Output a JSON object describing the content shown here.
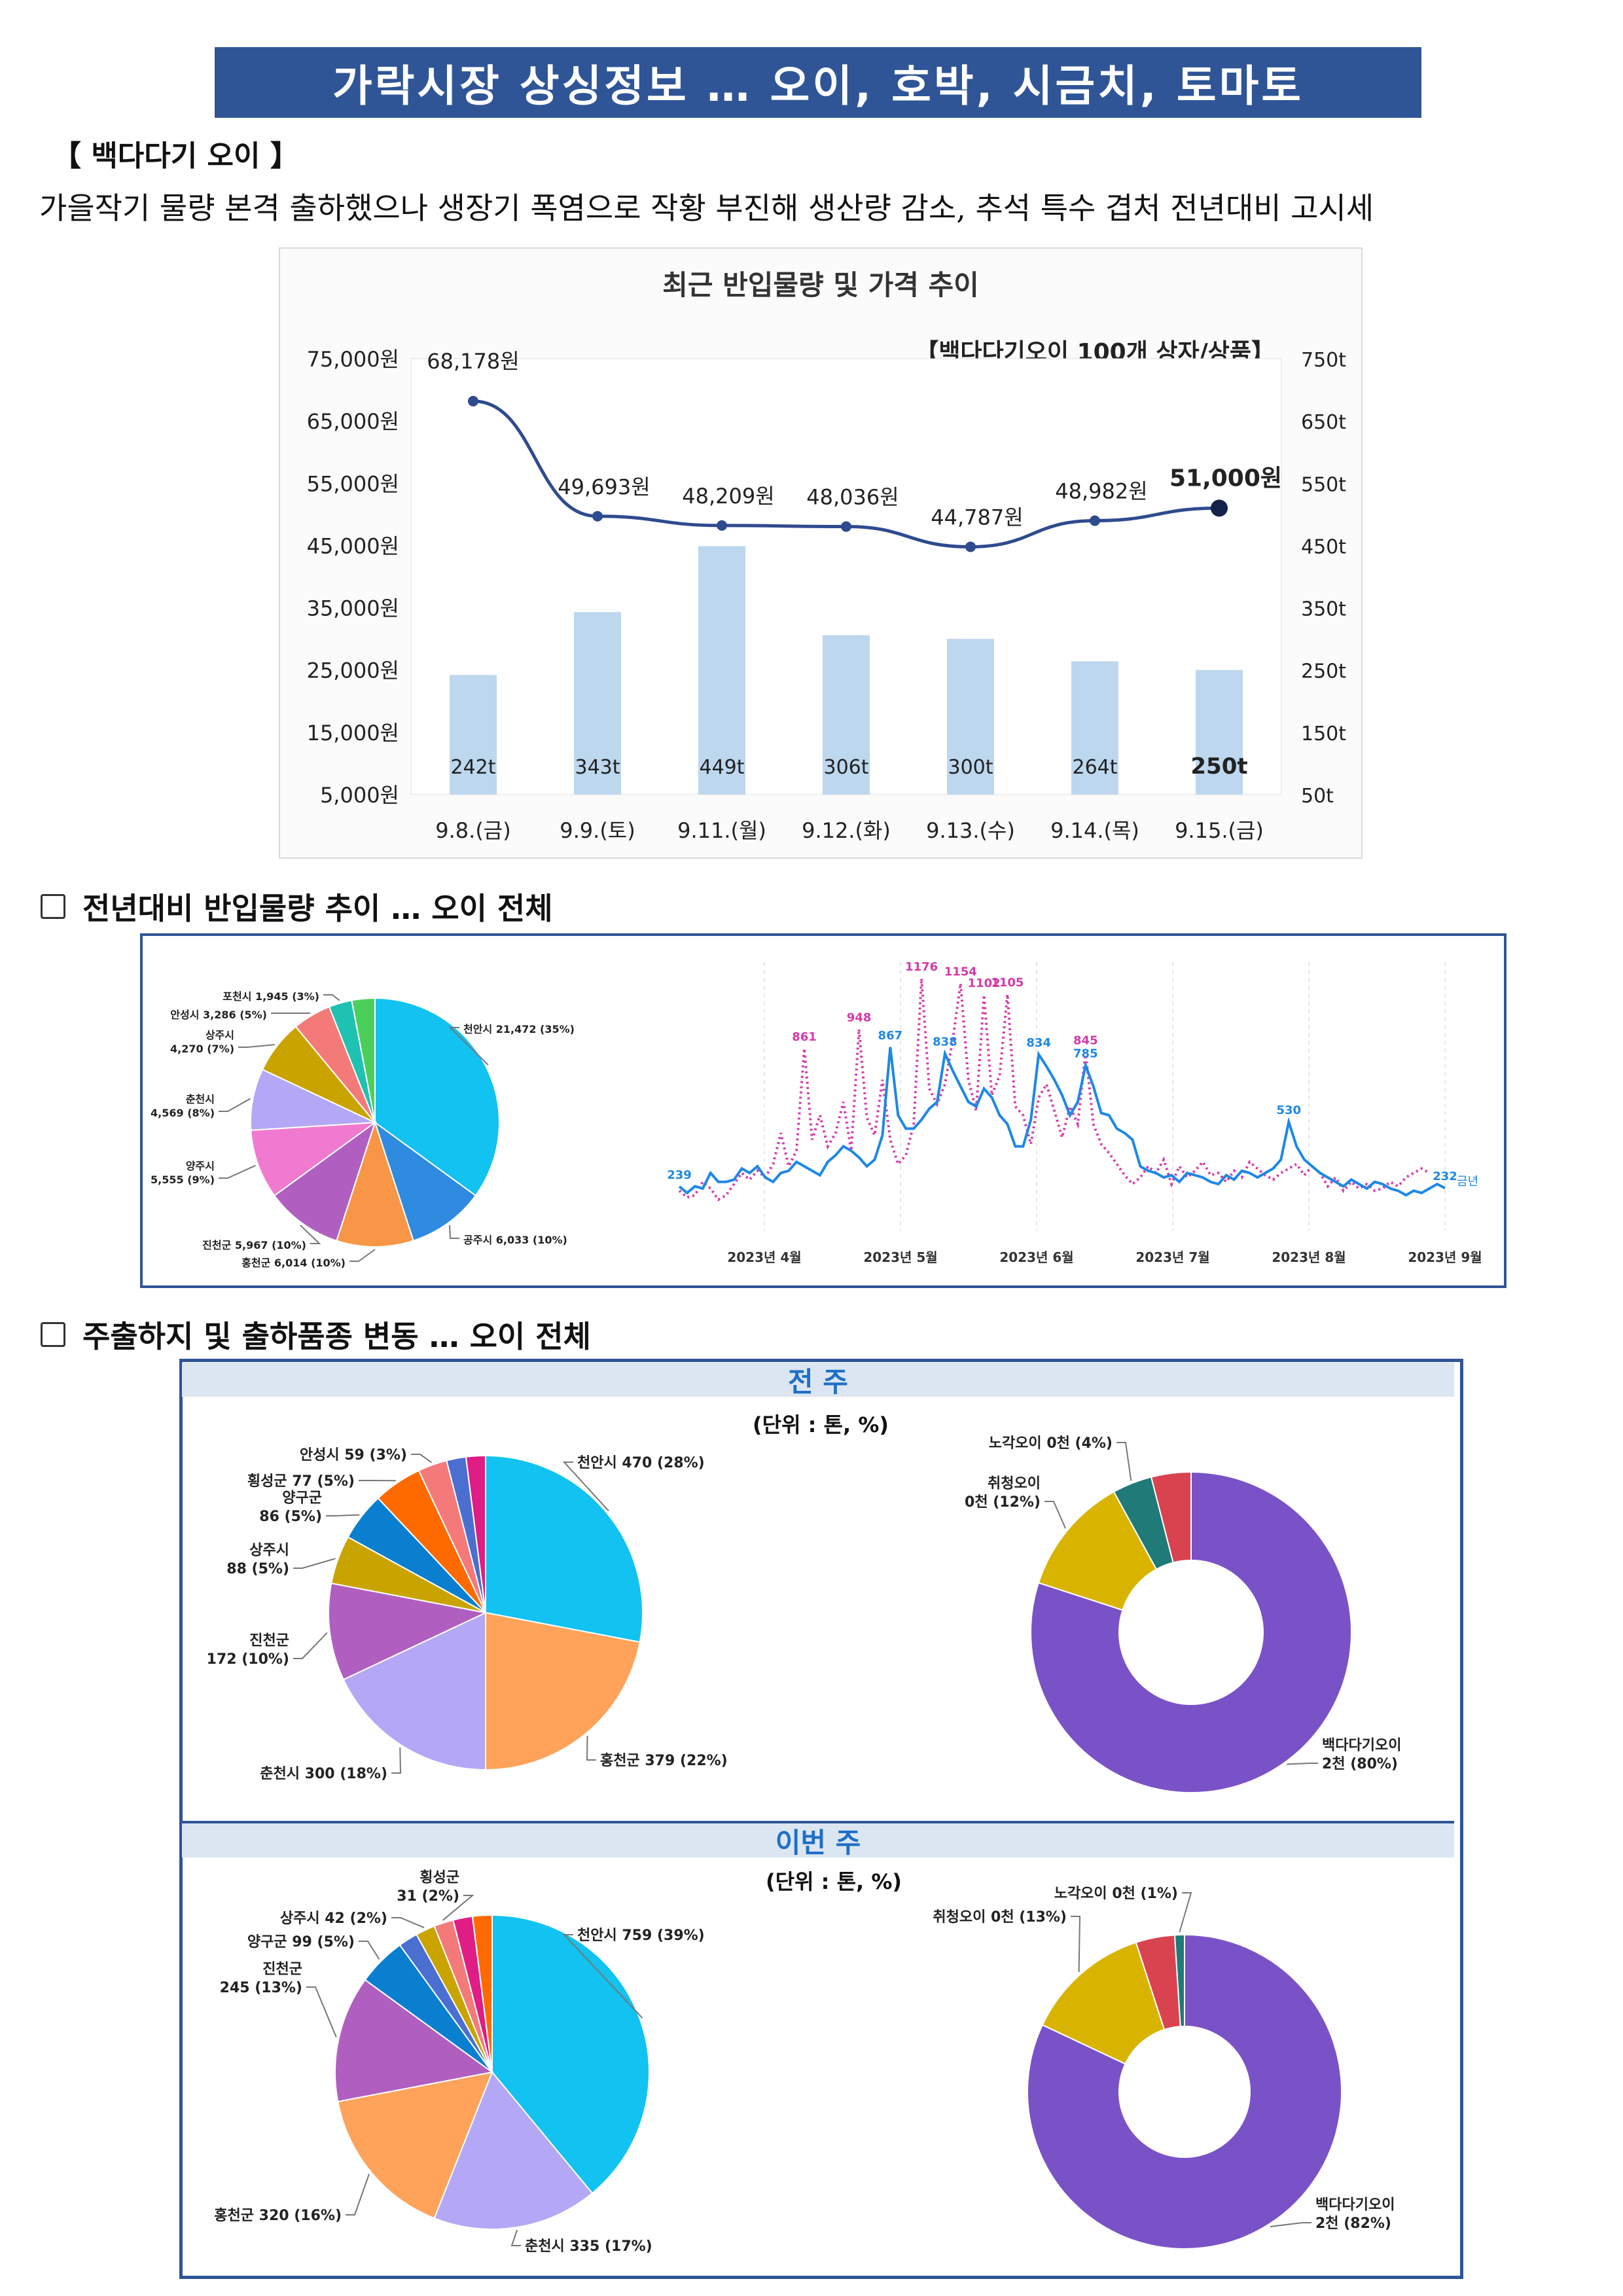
{
  "title": "가락시장 상싱정보 … 오이, 호박, 시금치, 토마토",
  "subhead": "【 백다다기 오이 】",
  "description": "가을작기 물량 본격 출하했으나 생장기 폭염으로 작황 부진해 생산량 감소, 추석 특수 겹처 전년대비 고시세",
  "chart_data": [
    {
      "type": "bar",
      "title": "최근 반입물량 및 가격 추이",
      "annotation": "【백다다기오이 100개 상자/상품】",
      "categories": [
        "9.8.(금)",
        "9.9.(토)",
        "9.11.(월)",
        "9.12.(화)",
        "9.13.(수)",
        "9.14.(목)",
        "9.15.(금)"
      ],
      "series": [
        {
          "values": [
            242,
            343,
            449,
            306,
            300,
            264,
            250
          ],
          "labels": [
            "242t",
            "343t",
            "449t",
            "306t",
            "300t",
            "264t",
            "250t"
          ]
        },
        {
          "values": [
            68178,
            49693,
            48209,
            48036,
            44787,
            48982,
            51000
          ],
          "labels": [
            "68,178원",
            "49,693원",
            "48,209원",
            "48,036원",
            "44,787원",
            "48,982원",
            "51,000원"
          ]
        }
      ],
      "y_left_ticks": [
        "75,000원",
        "65,000원",
        "55,000원",
        "45,000원",
        "35,000원",
        "25,000원",
        "15,000원",
        "5,000원"
      ],
      "y_right_ticks": [
        "750t",
        "650t",
        "550t",
        "450t",
        "350t",
        "250t",
        "150t",
        "50t"
      ],
      "ylim_left": [
        5000,
        75000
      ],
      "ylim_right": [
        50,
        750
      ],
      "colors": {
        "bar": "#bdd7ee",
        "line": "#2f4b8f"
      }
    },
    {
      "type": "pie",
      "section": "전년대비 반입물량 추이 … 오이 전체",
      "slices": [
        {
          "label": "천안시 21,472 (35%)",
          "value": 35,
          "color": "#12c2f0"
        },
        {
          "label": "공주시 6,033 (10%)",
          "value": 10,
          "color": "#2e8be0"
        },
        {
          "label": "홍천군 6,014 (10%)",
          "value": 10,
          "color": "#f79646"
        },
        {
          "label": "진천군 5,967 (10%)",
          "value": 10,
          "color": "#b05fc0"
        },
        {
          "label": "양주시 5,555 (9%)",
          "value": 9,
          "color": "#f07ad0"
        },
        {
          "label": "춘천시 4,569 (8%)",
          "value": 8,
          "color": "#b4a7f5"
        },
        {
          "label": "상주시 4,270 (7%)",
          "value": 7,
          "color": "#c9a400"
        },
        {
          "label": "안성시 3,286 (5%)",
          "value": 5,
          "color": "#f47a7a"
        },
        {
          "label": "포천시 1,945 (3%)",
          "value": 3,
          "color": "#1fc2b0"
        },
        {
          "label": "",
          "value": 3,
          "color": "#4ccf5a"
        }
      ]
    },
    {
      "type": "line",
      "x_labels": [
        "2023년 4월",
        "2023년 5월",
        "2023년 6월",
        "2023년 7월",
        "2023년 8월",
        "2023년 9월"
      ],
      "series": [
        {
          "name": "금년",
          "color": "#1e88e5",
          "peak_labels": [
            "239",
            "867",
            "838",
            "834",
            "785",
            "530",
            "232"
          ],
          "values": [
            239,
            210,
            240,
            230,
            300,
            260,
            260,
            270,
            320,
            300,
            330,
            280,
            260,
            300,
            310,
            350,
            330,
            310,
            290,
            350,
            380,
            420,
            400,
            370,
            330,
            360,
            470,
            867,
            560,
            500,
            500,
            540,
            590,
            620,
            838,
            760,
            690,
            620,
            600,
            680,
            640,
            560,
            520,
            420,
            420,
            540,
            834,
            780,
            720,
            650,
            560,
            620,
            785,
            690,
            570,
            560,
            500,
            480,
            450,
            330,
            310,
            300,
            280,
            290,
            260,
            300,
            290,
            280,
            260,
            250,
            290,
            270,
            310,
            300,
            280,
            300,
            320,
            360,
            530,
            420,
            360,
            330,
            300,
            280,
            260,
            240,
            270,
            250,
            230,
            260,
            250,
            230,
            220,
            200,
            220,
            210,
            230,
            250,
            232
          ]
        },
        {
          "name": "",
          "color": "#d63aa8",
          "peak_labels": [
            "861",
            "948",
            "1176",
            "1154",
            "1102",
            "1105",
            "845"
          ],
          "values": [
            220,
            190,
            200,
            260,
            230,
            180,
            200,
            250,
            300,
            270,
            310,
            280,
            340,
            480,
            330,
            400,
            861,
            450,
            560,
            420,
            480,
            620,
            400,
            948,
            550,
            470,
            720,
            450,
            340,
            380,
            520,
            1176,
            680,
            610,
            700,
            900,
            1154,
            720,
            580,
            1102,
            650,
            740,
            1105,
            600,
            560,
            430,
            640,
            700,
            580,
            460,
            600,
            520,
            845,
            520,
            430,
            390,
            340,
            290,
            250,
            280,
            330,
            300,
            360,
            250,
            330,
            280,
            310,
            350,
            290,
            300,
            260,
            310,
            280,
            350,
            320,
            290,
            270,
            300,
            320,
            340,
            290,
            330,
            300,
            240,
            280,
            220,
            260,
            230,
            250,
            220,
            230,
            260,
            240,
            280,
            300,
            320,
            300
          ]
        }
      ]
    },
    {
      "type": "pie",
      "section": "주출하지 및 출하품종 변동 … 오이 전체",
      "week": "전 주",
      "unit": "(단위 : 톤, %)",
      "slices": [
        {
          "label": "천안시 470 (28%)",
          "value": 28,
          "color": "#12c2f0"
        },
        {
          "label": "홍천군 379 (22%)",
          "value": 22,
          "color": "#ffa35a"
        },
        {
          "label": "춘천시 300 (18%)",
          "value": 18,
          "color": "#b4a7f5"
        },
        {
          "label": "진천군 172 (10%)",
          "value": 10,
          "color": "#b05fc0"
        },
        {
          "label": "상주시 88 (5%)",
          "value": 5,
          "color": "#c9a400"
        },
        {
          "label": "양구군 86 (5%)",
          "value": 5,
          "color": "#0a7fd0"
        },
        {
          "label": "횡성군 77 (5%)",
          "value": 5,
          "color": "#ff6a00"
        },
        {
          "label": "안성시 59 (3%)",
          "value": 3,
          "color": "#f47a7a"
        },
        {
          "label": "",
          "value": 2,
          "color": "#4a6fd1"
        },
        {
          "label": "",
          "value": 2,
          "color": "#e01c85"
        }
      ]
    },
    {
      "type": "pie",
      "variant": "donut",
      "week": "전 주",
      "slices": [
        {
          "label": "백다다기오이 2천 (80%)",
          "value": 80,
          "color": "#7a52c7"
        },
        {
          "label": "취청오이 0천 (12%)",
          "value": 12,
          "color": "#d8b400"
        },
        {
          "label": "노각오이 0천 (4%)",
          "value": 4,
          "color": "#1f7a78"
        },
        {
          "label": "",
          "value": 4,
          "color": "#d9434f"
        }
      ]
    },
    {
      "type": "pie",
      "week": "이번 주",
      "unit": "(단위 : 톤, %)",
      "slices": [
        {
          "label": "천안시 759 (39%)",
          "value": 39,
          "color": "#12c2f0"
        },
        {
          "label": "춘천시 335 (17%)",
          "value": 17,
          "color": "#b4a7f5"
        },
        {
          "label": "홍천군 320 (16%)",
          "value": 16,
          "color": "#ffa35a"
        },
        {
          "label": "진천군 245 (13%)",
          "value": 13,
          "color": "#b05fc0"
        },
        {
          "label": "양구군 99 (5%)",
          "value": 5,
          "color": "#0a7fd0"
        },
        {
          "label": "",
          "value": 2,
          "color": "#4a6fd1"
        },
        {
          "label": "상주시 42 (2%)",
          "value": 2,
          "color": "#c9a400"
        },
        {
          "label": "횡성군 31 (2%)",
          "value": 2,
          "color": "#f47a7a"
        },
        {
          "label": "",
          "value": 2,
          "color": "#e01c85"
        },
        {
          "label": "",
          "value": 2,
          "color": "#ff6a00"
        }
      ]
    },
    {
      "type": "pie",
      "variant": "donut",
      "week": "이번 주",
      "slices": [
        {
          "label": "백다다기오이 2천 (82%)",
          "value": 82,
          "color": "#7a52c7"
        },
        {
          "label": "취청오이 0천 (13%)",
          "value": 13,
          "color": "#d8b400"
        },
        {
          "label": "",
          "value": 4,
          "color": "#d9434f"
        },
        {
          "label": "노각오이 0천 (1%)",
          "value": 1,
          "color": "#1f7a78"
        }
      ]
    }
  ]
}
